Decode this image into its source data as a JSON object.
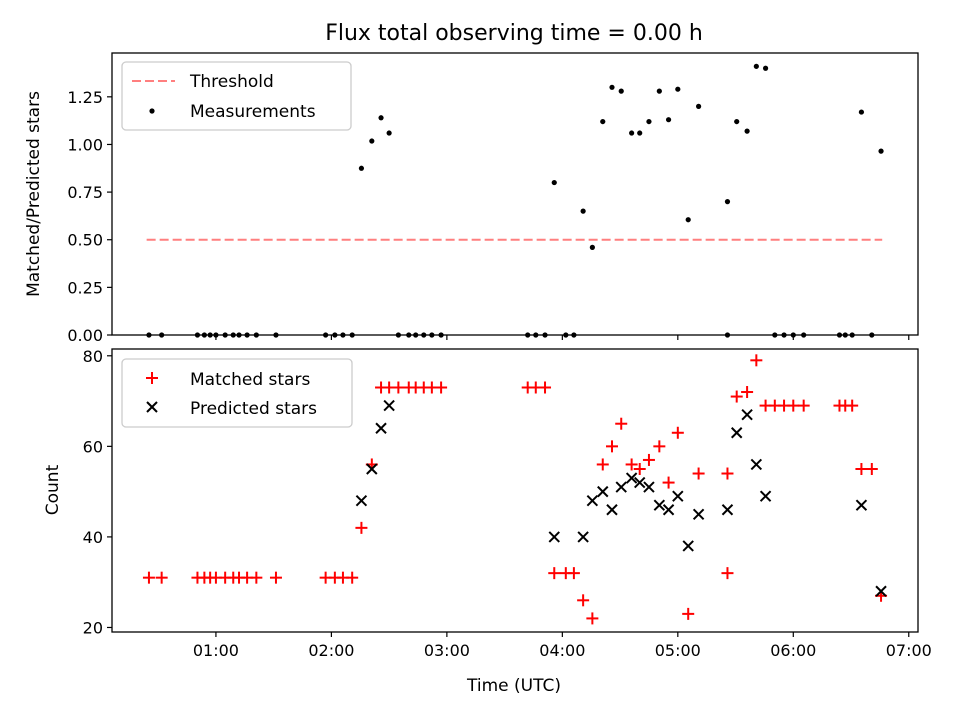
{
  "figure": {
    "title": "Flux total observing time = 0.00 h"
  },
  "chart_data": [
    {
      "type": "scatter",
      "ylabel": "Matched/Predicted stars",
      "xlim": [
        0.1,
        7.08
      ],
      "ylim": [
        0,
        1.48
      ],
      "yticks": [
        0.0,
        0.25,
        0.5,
        0.75,
        1.0,
        1.25
      ],
      "ytick_labels": [
        "0.00",
        "0.25",
        "0.50",
        "0.75",
        "1.00",
        "1.25"
      ],
      "legend_position": "top-left",
      "grid": false,
      "series": [
        {
          "name": "Threshold",
          "kind": "dashed-line",
          "color": "#ff7f7f",
          "x": [
            0.4,
            6.77
          ],
          "y": [
            0.5,
            0.5
          ]
        },
        {
          "name": "Measurements",
          "kind": "dot",
          "color": "#000000",
          "x": [
            0.42,
            0.53,
            0.84,
            0.9,
            0.95,
            1.0,
            1.08,
            1.15,
            1.2,
            1.27,
            1.35,
            1.52,
            1.95,
            2.03,
            2.1,
            2.18,
            2.26,
            2.35,
            2.43,
            2.5,
            2.58,
            2.67,
            2.73,
            2.8,
            2.87,
            2.95,
            3.7,
            3.77,
            3.85,
            3.93,
            4.03,
            4.1,
            4.18,
            4.26,
            4.35,
            4.43,
            4.51,
            4.6,
            4.67,
            4.75,
            4.84,
            4.92,
            5.0,
            5.09,
            5.18,
            5.43,
            5.43,
            5.51,
            5.6,
            5.68,
            5.76,
            5.84,
            5.92,
            6.0,
            6.09,
            6.4,
            6.45,
            6.51,
            6.59,
            6.68,
            6.76
          ],
          "y": [
            0,
            0,
            0,
            0,
            0,
            0,
            0,
            0,
            0,
            0,
            0,
            0,
            0,
            0,
            0,
            0,
            0.875,
            1.018,
            1.14,
            1.06,
            0,
            0,
            0,
            0,
            0,
            0,
            0,
            0,
            0,
            0.8,
            0,
            0,
            0.65,
            0.46,
            1.12,
            1.3,
            1.28,
            1.06,
            1.06,
            1.12,
            1.28,
            1.13,
            1.29,
            0.605,
            1.2,
            0.7,
            0,
            1.12,
            1.07,
            1.41,
            1.4,
            0,
            0,
            0,
            0,
            0,
            0,
            0,
            1.17,
            0,
            0.965
          ]
        }
      ]
    },
    {
      "type": "scatter",
      "ylabel": "Count",
      "xlabel": "Time (UTC)",
      "xlim": [
        0.1,
        7.08
      ],
      "ylim": [
        19,
        81.5
      ],
      "yticks": [
        20,
        40,
        60,
        80
      ],
      "ytick_labels": [
        "20",
        "40",
        "60",
        "80"
      ],
      "xticks": [
        1,
        2,
        3,
        4,
        5,
        6,
        7
      ],
      "xtick_labels": [
        "01:00",
        "02:00",
        "03:00",
        "04:00",
        "05:00",
        "06:00",
        "07:00"
      ],
      "legend_position": "top-left",
      "grid": false,
      "series": [
        {
          "name": "Matched stars",
          "kind": "plus",
          "color": "#ff0000",
          "x": [
            0.42,
            0.53,
            0.84,
            0.9,
            0.95,
            1.0,
            1.08,
            1.15,
            1.2,
            1.27,
            1.35,
            1.52,
            1.95,
            2.03,
            2.1,
            2.18,
            2.26,
            2.35,
            2.43,
            2.5,
            2.58,
            2.67,
            2.73,
            2.8,
            2.87,
            2.95,
            3.7,
            3.77,
            3.85,
            3.93,
            4.03,
            4.1,
            4.18,
            4.26,
            4.35,
            4.43,
            4.51,
            4.6,
            4.67,
            4.75,
            4.84,
            4.92,
            5.0,
            5.09,
            5.18,
            5.43,
            5.43,
            5.51,
            5.6,
            5.68,
            5.76,
            5.84,
            5.92,
            6.0,
            6.09,
            6.4,
            6.45,
            6.51,
            6.59,
            6.68,
            6.76
          ],
          "y": [
            31,
            31,
            31,
            31,
            31,
            31,
            31,
            31,
            31,
            31,
            31,
            31,
            31,
            31,
            31,
            31,
            42,
            56,
            73,
            73,
            73,
            73,
            73,
            73,
            73,
            73,
            73,
            73,
            73,
            32,
            32,
            32,
            26,
            22,
            56,
            60,
            65,
            56,
            55,
            57,
            60,
            52,
            63,
            23,
            54,
            32,
            54,
            71,
            72,
            79,
            69,
            69,
            69,
            69,
            69,
            69,
            69,
            69,
            55,
            55,
            27
          ]
        },
        {
          "name": "Predicted stars",
          "kind": "x",
          "color": "#000000",
          "x": [
            2.26,
            2.35,
            2.43,
            2.5,
            3.93,
            4.18,
            4.26,
            4.35,
            4.43,
            4.51,
            4.6,
            4.67,
            4.75,
            4.84,
            4.92,
            5.0,
            5.09,
            5.18,
            5.43,
            5.51,
            5.6,
            5.68,
            5.76,
            6.59,
            6.76
          ],
          "y": [
            48,
            55,
            64,
            69,
            40,
            40,
            48,
            50,
            46,
            51,
            53,
            52,
            51,
            47,
            46,
            49,
            38,
            45,
            46,
            63,
            67,
            56,
            49,
            47,
            28
          ]
        }
      ]
    }
  ]
}
